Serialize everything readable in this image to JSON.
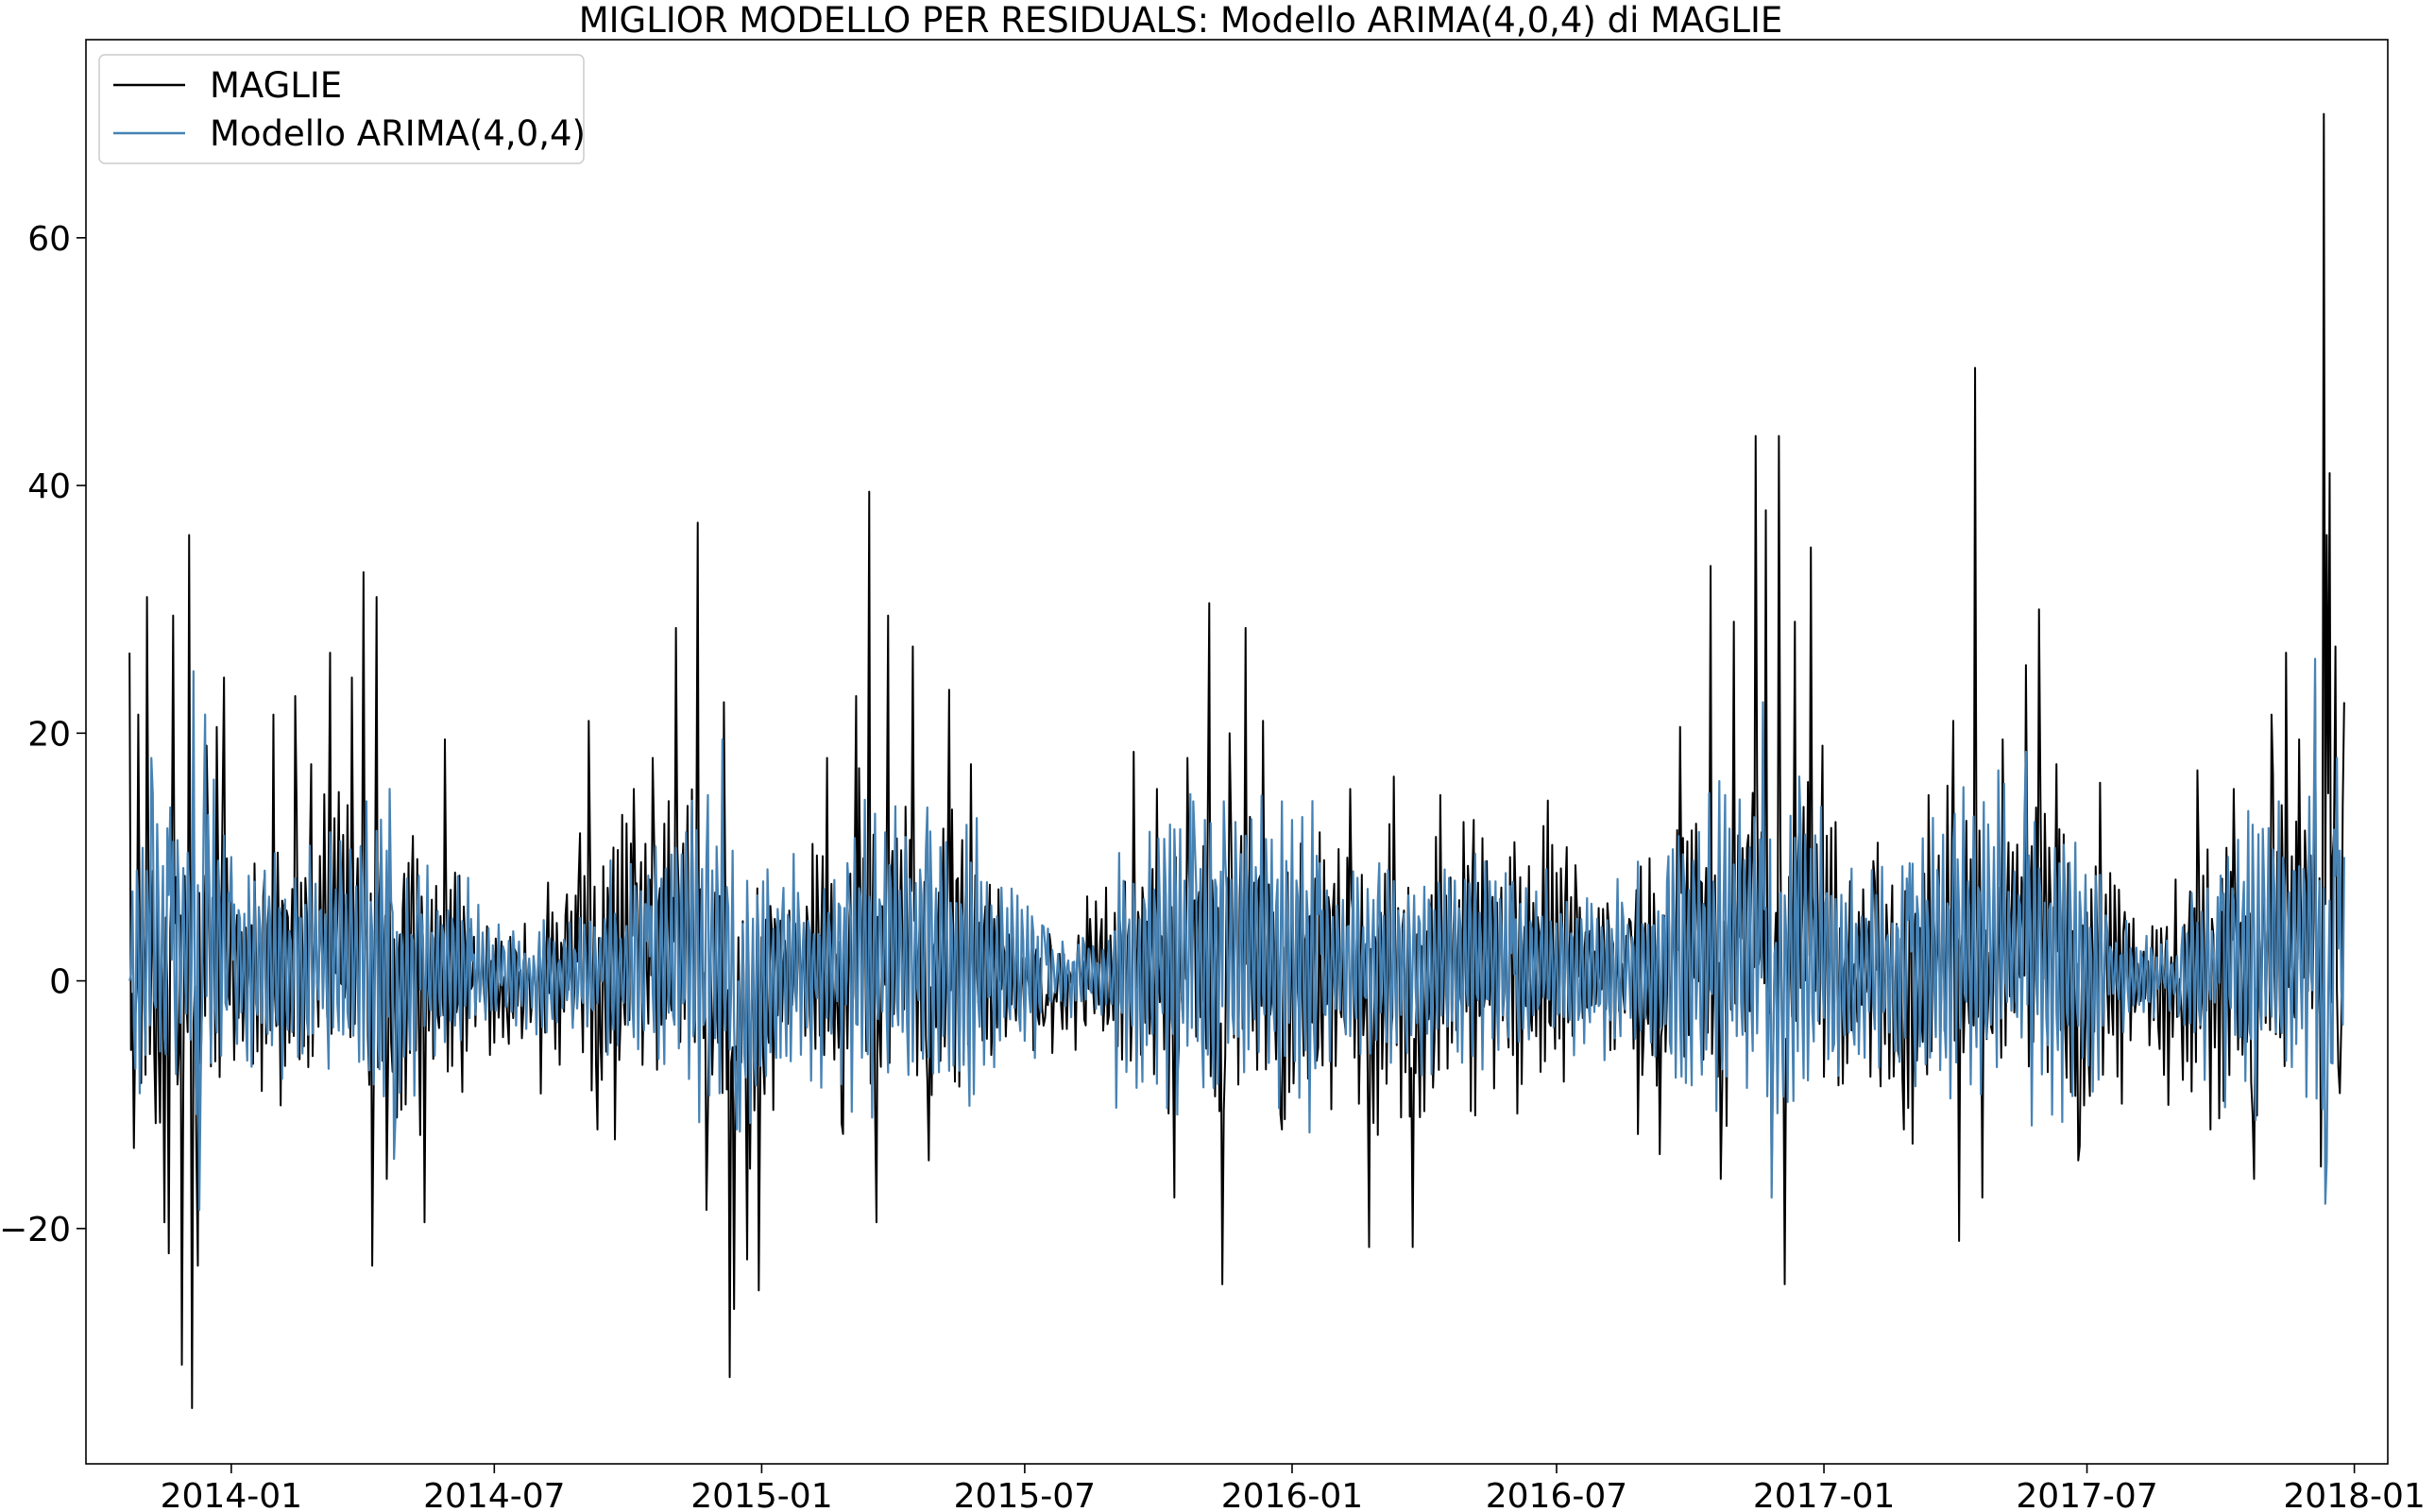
{
  "chart_data": {
    "type": "line",
    "title": "MIGLIOR MODELLO PER RESIDUALS: Modello ARIMA(4,0,4) di MAGLIE",
    "xlabel": "",
    "ylabel": "",
    "x_range": [
      "2013-09-23",
      "2018-01-24"
    ],
    "xticks": [
      "2014-01",
      "2014-07",
      "2015-01",
      "2015-07",
      "2016-01",
      "2016-07",
      "2017-01",
      "2017-07",
      "2018-01"
    ],
    "xtick_dates": [
      "2014-01-01",
      "2014-07-01",
      "2015-01-01",
      "2015-07-01",
      "2016-01-01",
      "2016-07-01",
      "2017-01-01",
      "2017-07-01",
      "2018-01-01"
    ],
    "ylim": [
      -39,
      76
    ],
    "yticks": [
      -20,
      0,
      20,
      40,
      60
    ],
    "ytick_labels": [
      "−20",
      "0",
      "20",
      "40",
      "60"
    ],
    "grid": false,
    "legend_position": "top-left",
    "series": [
      {
        "name": "MAGLIE",
        "color": "#000000",
        "points": [
          [
            "2013-10-23",
            26.5
          ],
          [
            "2013-10-26",
            -13.5
          ],
          [
            "2013-10-29",
            21.5
          ],
          [
            "2013-11-02",
            2.0
          ],
          [
            "2013-11-04",
            31.0
          ],
          [
            "2013-11-10",
            -11.5
          ],
          [
            "2013-11-16",
            -19.5
          ],
          [
            "2013-11-19",
            -22.0
          ],
          [
            "2013-11-22",
            29.5
          ],
          [
            "2013-11-28",
            -31.0
          ],
          [
            "2013-12-03",
            36.0
          ],
          [
            "2013-12-05",
            -34.5
          ],
          [
            "2013-12-09",
            -23.0
          ],
          [
            "2013-12-15",
            19.0
          ],
          [
            "2013-12-22",
            20.5
          ],
          [
            "2013-12-27",
            24.5
          ],
          [
            "2014-01-06",
            -3.0
          ],
          [
            "2014-01-15",
            4.5
          ],
          [
            "2014-01-30",
            21.5
          ],
          [
            "2014-02-10",
            -5.0
          ],
          [
            "2014-02-14",
            23.0
          ],
          [
            "2014-02-25",
            17.5
          ],
          [
            "2014-03-10",
            26.5
          ],
          [
            "2014-03-25",
            24.5
          ],
          [
            "2014-04-02",
            33.0
          ],
          [
            "2014-04-08",
            -23.0
          ],
          [
            "2014-04-11",
            31.0
          ],
          [
            "2014-04-18",
            -16.0
          ],
          [
            "2014-05-05",
            7.0
          ],
          [
            "2014-05-14",
            -19.5
          ],
          [
            "2014-05-28",
            19.5
          ],
          [
            "2014-06-10",
            6.0
          ],
          [
            "2014-07-01",
            -5.0
          ],
          [
            "2014-08-01",
            3.0
          ],
          [
            "2014-08-28",
            8.0
          ],
          [
            "2014-09-04",
            21.0
          ],
          [
            "2014-09-10",
            -12.0
          ],
          [
            "2014-10-05",
            15.5
          ],
          [
            "2014-10-18",
            18.0
          ],
          [
            "2014-11-03",
            28.5
          ],
          [
            "2014-11-18",
            37.0
          ],
          [
            "2014-11-24",
            -18.5
          ],
          [
            "2014-12-06",
            22.5
          ],
          [
            "2014-12-10",
            -32.0
          ],
          [
            "2014-12-13",
            -26.5
          ],
          [
            "2014-12-22",
            -22.5
          ],
          [
            "2014-12-30",
            -25.0
          ],
          [
            "2015-01-10",
            5.0
          ],
          [
            "2015-02-01",
            6.0
          ],
          [
            "2015-02-15",
            18.0
          ],
          [
            "2015-02-25",
            -11.5
          ],
          [
            "2015-03-07",
            23.0
          ],
          [
            "2015-03-16",
            39.5
          ],
          [
            "2015-03-21",
            -19.5
          ],
          [
            "2015-03-29",
            29.5
          ],
          [
            "2015-04-15",
            27.0
          ],
          [
            "2015-04-26",
            -14.5
          ],
          [
            "2015-05-10",
            23.5
          ],
          [
            "2015-05-25",
            17.5
          ],
          [
            "2015-06-10",
            5.0
          ],
          [
            "2015-07-15",
            -3.0
          ],
          [
            "2015-08-15",
            5.0
          ],
          [
            "2015-09-01",
            5.5
          ],
          [
            "2015-09-14",
            18.5
          ],
          [
            "2015-09-30",
            15.5
          ],
          [
            "2015-10-12",
            -17.5
          ],
          [
            "2015-10-21",
            18.0
          ],
          [
            "2015-11-05",
            30.5
          ],
          [
            "2015-11-14",
            -24.5
          ],
          [
            "2015-11-19",
            20.0
          ],
          [
            "2015-11-30",
            28.5
          ],
          [
            "2015-12-12",
            21.0
          ],
          [
            "2015-12-25",
            -12.0
          ],
          [
            "2016-01-20",
            12.0
          ],
          [
            "2016-02-10",
            15.5
          ],
          [
            "2016-02-23",
            -21.5
          ],
          [
            "2016-03-11",
            16.5
          ],
          [
            "2016-03-24",
            -21.5
          ],
          [
            "2016-04-12",
            15.0
          ],
          [
            "2016-05-05",
            13.0
          ],
          [
            "2016-05-30",
            10.0
          ],
          [
            "2016-06-22",
            12.5
          ],
          [
            "2016-07-15",
            6.0
          ],
          [
            "2016-08-20",
            5.0
          ],
          [
            "2016-09-10",
            -14.0
          ],
          [
            "2016-09-24",
            20.5
          ],
          [
            "2016-10-15",
            33.5
          ],
          [
            "2016-10-22",
            -16.0
          ],
          [
            "2016-10-31",
            29.0
          ],
          [
            "2016-11-15",
            44.0
          ],
          [
            "2016-11-22",
            38.0
          ],
          [
            "2016-11-26",
            -16.5
          ],
          [
            "2016-12-01",
            44.0
          ],
          [
            "2016-12-05",
            -24.5
          ],
          [
            "2016-12-12",
            29.0
          ],
          [
            "2016-12-23",
            35.0
          ],
          [
            "2016-12-31",
            19.0
          ],
          [
            "2017-01-20",
            -4.0
          ],
          [
            "2017-02-05",
            8.0
          ],
          [
            "2017-02-25",
            -12.0
          ],
          [
            "2017-03-14",
            15.0
          ],
          [
            "2017-03-31",
            21.0
          ],
          [
            "2017-04-04",
            -21.0
          ],
          [
            "2017-04-15",
            49.5
          ],
          [
            "2017-04-20",
            -17.5
          ],
          [
            "2017-05-04",
            19.5
          ],
          [
            "2017-05-20",
            25.5
          ],
          [
            "2017-05-29",
            30.0
          ],
          [
            "2017-06-10",
            17.5
          ],
          [
            "2017-06-25",
            -14.5
          ],
          [
            "2017-07-10",
            16.0
          ],
          [
            "2017-07-28",
            3.0
          ],
          [
            "2017-08-20",
            -5.5
          ],
          [
            "2017-09-05",
            -8.0
          ],
          [
            "2017-09-15",
            17.0
          ],
          [
            "2017-09-24",
            -12.0
          ],
          [
            "2017-10-10",
            15.5
          ],
          [
            "2017-10-24",
            -16.0
          ],
          [
            "2017-11-05",
            21.5
          ],
          [
            "2017-11-15",
            26.5
          ],
          [
            "2017-11-24",
            19.5
          ],
          [
            "2017-12-05",
            24.0
          ],
          [
            "2017-12-09",
            -15.0
          ],
          [
            "2017-12-11",
            70.0
          ],
          [
            "2017-12-13",
            36.0
          ],
          [
            "2017-12-15",
            41.0
          ],
          [
            "2017-12-19",
            27.0
          ],
          [
            "2017-12-21",
            -7.0
          ],
          [
            "2017-12-25",
            22.5
          ]
        ]
      },
      {
        "name": "Modello ARIMA(4,0,4)",
        "color": "#4682b4",
        "points": [
          [
            "2013-10-23",
            0.0
          ],
          [
            "2013-11-07",
            18.0
          ],
          [
            "2013-11-20",
            14.0
          ],
          [
            "2013-12-06",
            25.0
          ],
          [
            "2013-12-10",
            -18.5
          ],
          [
            "2013-12-14",
            21.5
          ],
          [
            "2014-01-01",
            10.0
          ],
          [
            "2014-02-15",
            5.0
          ],
          [
            "2014-03-10",
            12.0
          ],
          [
            "2014-04-04",
            14.5
          ],
          [
            "2014-04-20",
            15.5
          ],
          [
            "2014-04-24",
            -11.0
          ],
          [
            "2014-05-10",
            8.5
          ],
          [
            "2014-06-15",
            5.0
          ],
          [
            "2014-07-15",
            2.0
          ],
          [
            "2014-09-15",
            5.0
          ],
          [
            "2014-10-15",
            8.5
          ],
          [
            "2014-11-10",
            12.0
          ],
          [
            "2014-11-25",
            15.0
          ],
          [
            "2014-12-05",
            19.5
          ],
          [
            "2014-12-15",
            -12.0
          ],
          [
            "2015-01-15",
            5.0
          ],
          [
            "2015-03-01",
            9.5
          ],
          [
            "2015-03-20",
            13.5
          ],
          [
            "2015-04-25",
            14.0
          ],
          [
            "2015-06-01",
            8.0
          ],
          [
            "2015-07-15",
            3.0
          ],
          [
            "2015-09-01",
            4.0
          ],
          [
            "2015-10-01",
            11.5
          ],
          [
            "2015-10-25",
            14.5
          ],
          [
            "2015-11-15",
            14.5
          ],
          [
            "2015-12-25",
            14.5
          ],
          [
            "2016-01-20",
            9.5
          ],
          [
            "2016-03-01",
            9.5
          ],
          [
            "2016-04-15",
            9.0
          ],
          [
            "2016-06-01",
            8.0
          ],
          [
            "2016-07-15",
            5.0
          ],
          [
            "2016-09-15",
            8.0
          ],
          [
            "2016-10-25",
            15.0
          ],
          [
            "2016-11-20",
            22.5
          ],
          [
            "2016-11-26",
            -17.5
          ],
          [
            "2016-12-15",
            16.5
          ],
          [
            "2017-01-10",
            3.0
          ],
          [
            "2017-03-01",
            9.5
          ],
          [
            "2017-04-01",
            13.5
          ],
          [
            "2017-05-01",
            17.0
          ],
          [
            "2017-05-20",
            18.5
          ],
          [
            "2017-06-15",
            11.0
          ],
          [
            "2017-07-15",
            4.0
          ],
          [
            "2017-09-01",
            2.0
          ],
          [
            "2017-10-01",
            8.5
          ],
          [
            "2017-11-10",
            14.5
          ],
          [
            "2017-12-05",
            26.0
          ],
          [
            "2017-12-12",
            -18.0
          ],
          [
            "2017-12-20",
            18.0
          ],
          [
            "2017-12-25",
            10.0
          ]
        ]
      }
    ]
  }
}
